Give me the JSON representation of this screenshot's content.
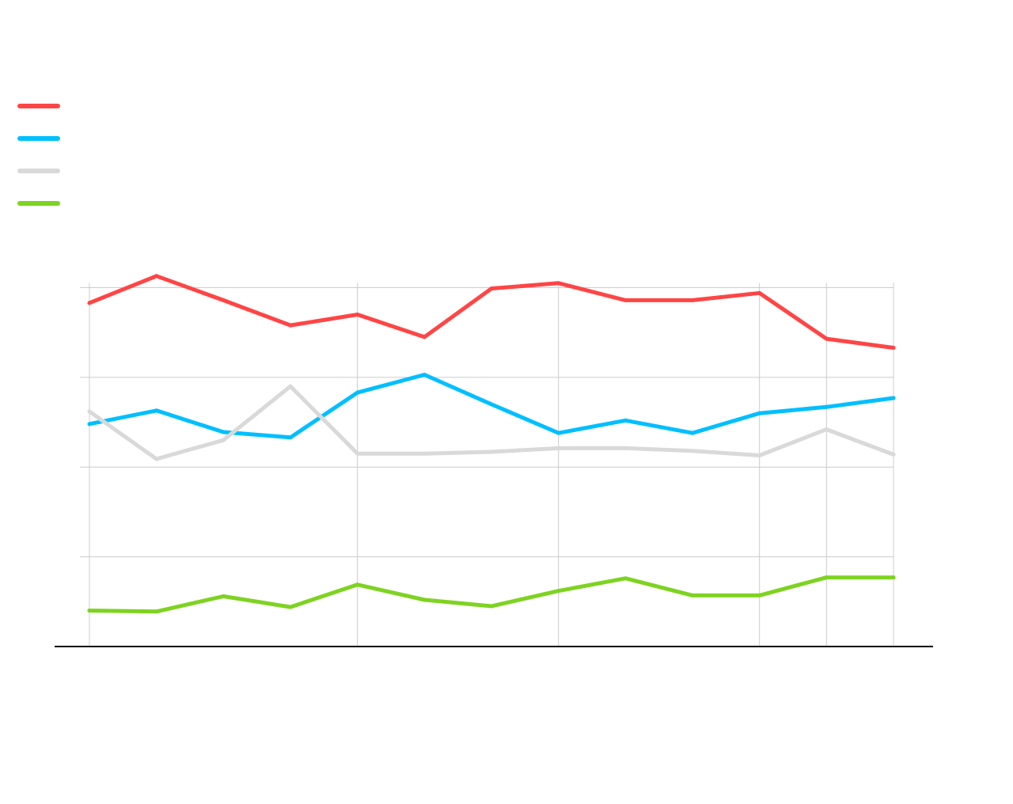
{
  "chart_data": {
    "type": "line",
    "x": [
      1,
      2,
      3,
      4,
      5,
      6,
      7,
      8,
      9,
      10,
      11,
      12,
      13
    ],
    "ylim": [
      0,
      4
    ],
    "grid": true,
    "legend_position": "top-left",
    "vertical_gridlines_at_points": [
      1,
      5,
      8,
      11,
      12,
      13
    ],
    "series": [
      {
        "color": "#ff4545",
        "values": [
          3.83,
          4.13,
          3.86,
          3.58,
          3.7,
          3.45,
          3.99,
          4.05,
          3.86,
          3.86,
          3.94,
          3.43,
          3.33
        ]
      },
      {
        "color": "#00bfff",
        "values": [
          2.48,
          2.63,
          2.39,
          2.33,
          2.83,
          3.03,
          2.7,
          2.38,
          2.52,
          2.38,
          2.6,
          2.67,
          2.77
        ]
      },
      {
        "color": "#d9d9d9",
        "values": [
          2.62,
          2.09,
          2.3,
          2.9,
          2.15,
          2.15,
          2.17,
          2.21,
          2.21,
          2.18,
          2.13,
          2.42,
          2.14
        ]
      },
      {
        "color": "#7ed321",
        "values": [
          0.4,
          0.39,
          0.56,
          0.44,
          0.69,
          0.52,
          0.45,
          0.62,
          0.76,
          0.57,
          0.57,
          0.77,
          0.77
        ]
      }
    ]
  }
}
